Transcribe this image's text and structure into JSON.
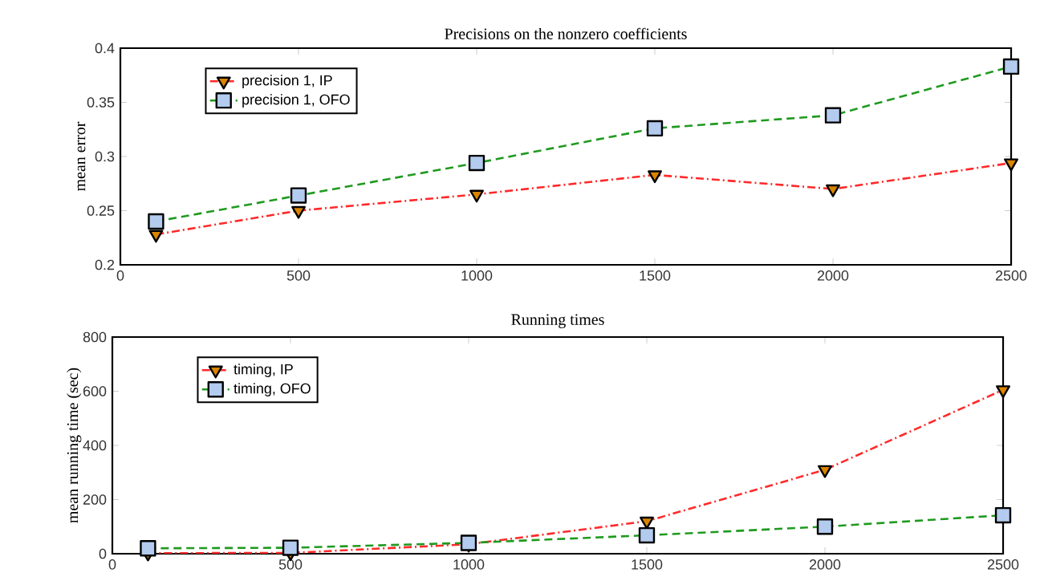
{
  "chart_data": [
    {
      "type": "line",
      "title": "Precisions on the nonzero coefficients",
      "ylabel": "mean error",
      "x": [
        100,
        500,
        1000,
        1500,
        2000,
        2500
      ],
      "xlim": [
        0,
        2500
      ],
      "xticks": [
        0,
        500,
        1000,
        1500,
        2000,
        2500
      ],
      "ylim": [
        0.2,
        0.4
      ],
      "yticks": [
        0.2,
        0.25,
        0.3,
        0.35,
        0.4
      ],
      "legend": "top left",
      "grid": false,
      "series": [
        {
          "name": "precision 1, IP",
          "color": "#ff2a2a",
          "marker": "triangle",
          "line_style": "dashdot",
          "values": [
            0.228,
            0.25,
            0.265,
            0.283,
            0.27,
            0.294
          ]
        },
        {
          "name": "precision 1, OFO",
          "color": "#1f9a1f",
          "marker": "square",
          "line_style": "dashed",
          "values": [
            0.24,
            0.264,
            0.294,
            0.326,
            0.338,
            0.383
          ]
        }
      ]
    },
    {
      "type": "line",
      "title": "Running times",
      "ylabel": "mean running time (sec)",
      "x": [
        100,
        500,
        1000,
        1500,
        2000,
        2500
      ],
      "xlim": [
        0,
        2500
      ],
      "xticks": [
        0,
        500,
        1000,
        1500,
        2000,
        2500
      ],
      "ylim": [
        0,
        800
      ],
      "yticks": [
        0,
        200,
        400,
        600,
        800
      ],
      "legend": "top left",
      "grid": false,
      "series": [
        {
          "name": "timing, IP",
          "color": "#ff2a2a",
          "marker": "triangle",
          "line_style": "dashdot",
          "values": [
            2,
            3,
            35,
            120,
            310,
            605
          ]
        },
        {
          "name": "timing, OFO",
          "color": "#1f9a1f",
          "marker": "square",
          "line_style": "dashed",
          "values": [
            20,
            22,
            40,
            68,
            100,
            142
          ]
        }
      ]
    }
  ]
}
